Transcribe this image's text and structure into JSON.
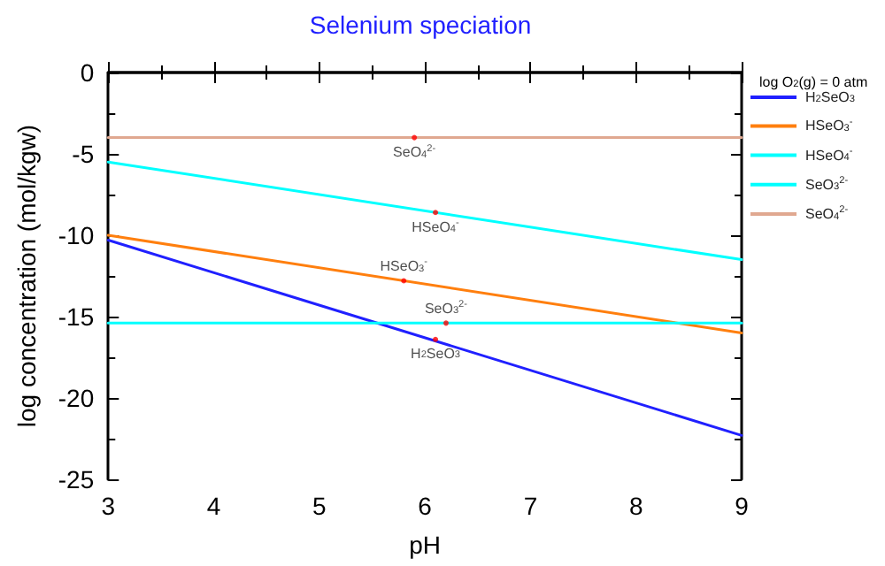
{
  "chart_data": {
    "type": "line",
    "title": "Selenium speciation",
    "xlabel": "pH",
    "ylabel": "log concentration (mol/kgw)",
    "legend_title": "log O$_{2}$(g) = 0 atm",
    "legend": "right",
    "grid": false,
    "marker": "none",
    "line_style": "solid",
    "xlim": [
      3,
      9
    ],
    "xticks": [
      3,
      4,
      5,
      6,
      7,
      8,
      9
    ],
    "ylim": [
      -25,
      0
    ],
    "yticks": [
      -25,
      -20,
      -15,
      -10,
      -5,
      0
    ],
    "x": [
      3,
      9
    ],
    "series": [
      {
        "name": "H$_{2}$SeO$_{3}$",
        "color": "#2020ff",
        "values": [
          -10.3,
          -22.3
        ]
      },
      {
        "name": "HSeO$_{3}$$^{-}$",
        "color": "#ff7f0e",
        "values": [
          -10,
          -16
        ]
      },
      {
        "name": "HSeO$_{4}$$^{-}$",
        "color": "#00ffff",
        "values": [
          -5.5,
          -11.5
        ]
      },
      {
        "name": "SeO$_{3}$$^{2-}$",
        "color": "#00ffff",
        "values": [
          -15.4,
          -15.4
        ]
      },
      {
        "name": "SeO$_{4}$$^{2-}$",
        "color": "#e0a890",
        "values": [
          -4,
          -4
        ]
      }
    ],
    "annotations": [
      {
        "text": "SeO$_{4}$$^{2-}$",
        "x": 5.9,
        "y": -4
      },
      {
        "text": "HSeO$_{4}$$^{-}$",
        "x": 6.1,
        "y": -8.6
      },
      {
        "text": "HSeO$_{3}$$^{-}$",
        "x": 5.8,
        "y": -12.8
      },
      {
        "text": "SeO$_{3}$$^{2-}$",
        "x": 6.2,
        "y": -15.4
      },
      {
        "text": "H$_{2}$SeO$_{3}$",
        "x": 6.1,
        "y": -16.4
      }
    ]
  }
}
